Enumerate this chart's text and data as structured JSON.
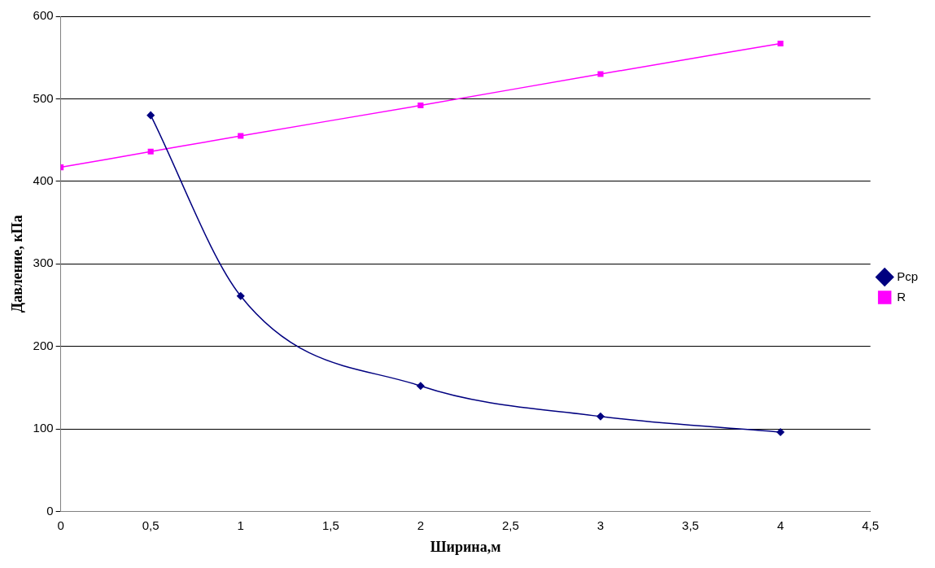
{
  "chart_data": {
    "type": "line",
    "xlabel": "Ширина,м",
    "ylabel": "Давление, кПа",
    "xlim": [
      0,
      4.5
    ],
    "xticks": [
      0,
      {
        "value": 0.5,
        "label": "0,5"
      },
      1,
      {
        "value": 1.5,
        "label": "1,5"
      },
      2,
      {
        "value": 2.5,
        "label": "2,5"
      },
      3,
      {
        "value": 3.5,
        "label": "3,5"
      },
      4,
      {
        "value": 4.5,
        "label": "4,5"
      }
    ],
    "ylim": [
      0,
      600
    ],
    "yticks": [
      0,
      100,
      200,
      300,
      400,
      500,
      600
    ],
    "grid": "y",
    "legend": "right",
    "series": [
      {
        "name": "Pср",
        "color": "#000080",
        "marker": "diamond",
        "x": [
          0.5,
          1,
          2,
          3,
          4
        ],
        "values": [
          480,
          261,
          152,
          115,
          96
        ]
      },
      {
        "name": "R",
        "color": "#ff00ff",
        "marker": "square",
        "x": [
          0,
          0.5,
          1,
          2,
          3,
          4
        ],
        "values": [
          417,
          436,
          455,
          492,
          530,
          567
        ]
      }
    ]
  }
}
